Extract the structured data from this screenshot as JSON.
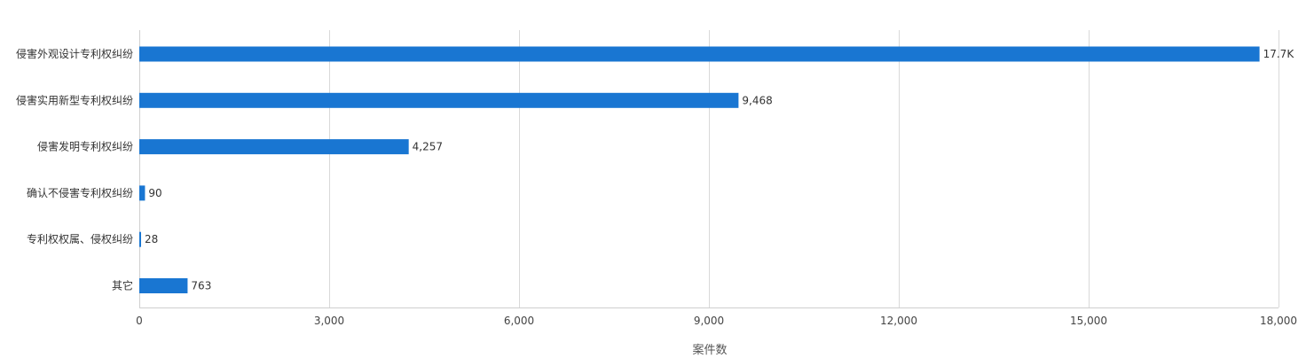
{
  "chart_data": {
    "type": "bar",
    "orientation": "horizontal",
    "categories": [
      "侵害外观设计专利权纠纷",
      "侵害实用新型专利权纠纷",
      "侵害发明专利权纠纷",
      "确认不侵害专利权纠纷",
      "专利权权属、侵权纠纷",
      "其它"
    ],
    "values": [
      17700,
      9468,
      4257,
      90,
      28,
      763
    ],
    "data_labels": [
      "17.7K",
      "9,468",
      "4,257",
      "90",
      "28",
      "763"
    ],
    "xlabel": "案件数",
    "ylabel": "",
    "xlim": [
      0,
      18000
    ],
    "xticks": [
      0,
      3000,
      6000,
      9000,
      12000,
      15000,
      18000
    ],
    "xtick_labels": [
      "0",
      "3,000",
      "6,000",
      "9,000",
      "12,000",
      "15,000",
      "18,000"
    ],
    "grid": "vertical",
    "bar_color": "#1976D2"
  }
}
